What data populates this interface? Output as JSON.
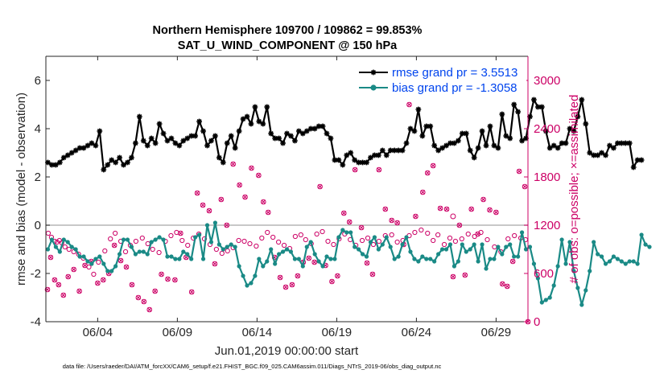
{
  "chart_data": {
    "type": "line",
    "title_line1": "Northern Hemisphere 109700 / 109862 = 99.853%",
    "title_line2": "SAT_U_WIND_COMPONENT @ 150 hPa",
    "xlabel": "Jun.01,2019 00:00:00 start",
    "ylabel_left": "rmse and bias (model - observation)",
    "ylabel_right": "# of obs: o=possible; ×=assimilated",
    "xlim": [
      0.75,
      31
    ],
    "ylim_left": [
      -4,
      7
    ],
    "ylim_right": [
      0,
      3300
    ],
    "x_ticks": [
      {
        "x": 4,
        "label": "06/04"
      },
      {
        "x": 9,
        "label": "06/09"
      },
      {
        "x": 14,
        "label": "06/14"
      },
      {
        "x": 19,
        "label": "06/19"
      },
      {
        "x": 24,
        "label": "06/24"
      },
      {
        "x": 29,
        "label": "06/29"
      }
    ],
    "y_ticks_left": [
      {
        "v": -4,
        "label": "-4"
      },
      {
        "v": -2,
        "label": "-2"
      },
      {
        "v": 0,
        "label": "0"
      },
      {
        "v": 2,
        "label": "2"
      },
      {
        "v": 4,
        "label": "4"
      },
      {
        "v": 6,
        "label": "6"
      }
    ],
    "y_ticks_right": [
      {
        "v": 0,
        "label": "0"
      },
      {
        "v": 600,
        "label": "600"
      },
      {
        "v": 1200,
        "label": "1200"
      },
      {
        "v": 1800,
        "label": "1800"
      },
      {
        "v": 2400,
        "label": "2400"
      },
      {
        "v": 3000,
        "label": "3000"
      }
    ],
    "series": [
      {
        "name": "rmse grand pr = 3.5513",
        "color": "#000000",
        "marker": "asterisk",
        "x_start": 0.875,
        "x_step": 0.25,
        "values": [
          2.6,
          2.5,
          2.5,
          2.6,
          2.8,
          2.9,
          3.0,
          3.1,
          3.2,
          3.2,
          3.3,
          3.4,
          3.3,
          3.9,
          2.3,
          2.5,
          2.7,
          2.6,
          2.8,
          2.5,
          2.6,
          2.8,
          3.4,
          4.5,
          3.5,
          3.3,
          3.6,
          3.4,
          4.2,
          3.8,
          3.5,
          3.6,
          3.4,
          3.3,
          3.5,
          3.6,
          3.7,
          3.7,
          4.3,
          3.9,
          3.3,
          3.5,
          3.7,
          2.8,
          2.6,
          3.4,
          3.7,
          3.2,
          3.9,
          4.4,
          4.5,
          4.2,
          4.9,
          4.3,
          4.2,
          4.9,
          3.8,
          3.6,
          3.6,
          3.4,
          3.8,
          3.7,
          3.5,
          3.9,
          3.8,
          3.9,
          4.0,
          4.0,
          4.1,
          4.1,
          3.8,
          3.6,
          2.7,
          2.7,
          2.5,
          2.9,
          3.0,
          2.7,
          2.6,
          2.6,
          2.6,
          2.8,
          2.9,
          2.9,
          3.1,
          2.9,
          3.1,
          3.1,
          3.1,
          3.1,
          3.4,
          4.0,
          3.9,
          4.8,
          3.7,
          4.1,
          4.1,
          3.3,
          3.1,
          3.2,
          3.3,
          3.4,
          3.4,
          3.5,
          3.8,
          3.8,
          3.1,
          2.8,
          3.2,
          3.9,
          3.3,
          4.1,
          3.3,
          3.2,
          4.6,
          3.7,
          3.6,
          5.0,
          4.7,
          3.5,
          3.6,
          4.5,
          5.2,
          4.9,
          4.9,
          3.9,
          3.2,
          3.3,
          3.2,
          3.4,
          3.4,
          4.0,
          3.9,
          4.5,
          5.2,
          4.2,
          3.0,
          2.9,
          2.9,
          3.0,
          2.9,
          3.3,
          3.2,
          3.4,
          3.4,
          3.4,
          3.4,
          2.4,
          2.7,
          2.7
        ]
      },
      {
        "name": "bias grand pr = -1.3058",
        "color": "#1a8a86",
        "marker": "dot",
        "x_start": 0.875,
        "x_step": 0.25,
        "values": [
          -1.0,
          -0.6,
          -0.9,
          -1.1,
          -0.6,
          -0.7,
          -0.9,
          -1.0,
          -1.3,
          -1.3,
          -1.5,
          -1.6,
          -1.4,
          -1.3,
          -1.6,
          -1.9,
          -1.9,
          -1.7,
          -1.2,
          -0.6,
          -0.6,
          -0.9,
          -1.2,
          -1.1,
          -1.1,
          -1.2,
          -0.7,
          -0.6,
          -0.5,
          -0.6,
          -1.3,
          -1.3,
          -1.4,
          -1.4,
          -1.1,
          -1.2,
          -1.4,
          -0.5,
          -0.4,
          -1.4,
          0.0,
          -0.7,
          0.1,
          -0.8,
          -1.0,
          -0.9,
          -0.8,
          -0.9,
          -1.7,
          -2.1,
          -2.5,
          -2.4,
          -2.1,
          -1.4,
          -1.7,
          -1.5,
          -1.0,
          -1.6,
          -1.2,
          -1.1,
          -1.0,
          -1.1,
          -1.4,
          -1.4,
          -1.7,
          -0.9,
          -0.7,
          -1.2,
          -1.5,
          -1.7,
          -1.3,
          -1.4,
          -1.4,
          -0.5,
          -0.2,
          -0.3,
          -0.3,
          -0.9,
          -1.0,
          -1.2,
          -1.3,
          -0.7,
          -0.5,
          -1.0,
          -0.8,
          -0.5,
          -0.9,
          -1.4,
          -1.3,
          -0.8,
          -0.5,
          -1.1,
          -1.4,
          -1.5,
          -1.3,
          -1.4,
          -1.4,
          -1.5,
          -1.2,
          -1.0,
          -1.0,
          -0.8,
          -1.7,
          -1.5,
          -0.8,
          -1.1,
          -1.0,
          -0.8,
          -1.5,
          -0.8,
          -1.8,
          -1.4,
          -1.4,
          -0.9,
          -1.2,
          -0.9,
          -0.8,
          -1.3,
          -1.3,
          -0.3,
          -1.0,
          -0.9,
          -1.6,
          -2.2,
          -3.2,
          -3.1,
          -3.0,
          -2.5,
          -1.7,
          -0.6,
          -1.6,
          -0.7,
          -1.9,
          -2.6,
          -3.3,
          -2.7,
          -1.9,
          -0.7,
          -1.2,
          -1.3,
          -1.6,
          -1.5,
          -1.3,
          -1.4,
          -1.5,
          -1.6,
          -1.5,
          -1.5,
          -1.6,
          -0.4,
          -0.8,
          -0.9
        ]
      }
    ],
    "obs_possible_points": [
      [
        0.9,
        1100
      ],
      [
        1.1,
        1050
      ],
      [
        1.3,
        1000
      ],
      [
        1.45,
        990
      ],
      [
        1.6,
        1010
      ],
      [
        1.75,
        980
      ],
      [
        1.95,
        930
      ],
      [
        2.2,
        900
      ],
      [
        2.5,
        870
      ],
      [
        2.8,
        840
      ],
      [
        3.1,
        790
      ],
      [
        3.45,
        680
      ],
      [
        3.75,
        590
      ],
      [
        4.05,
        740
      ],
      [
        4.45,
        880
      ],
      [
        4.8,
        1030
      ],
      [
        5.1,
        1100
      ],
      [
        5.45,
        1000
      ],
      [
        5.75,
        870
      ],
      [
        6.05,
        950
      ],
      [
        6.4,
        1000
      ],
      [
        6.8,
        1040
      ],
      [
        7.15,
        970
      ],
      [
        7.45,
        900
      ],
      [
        7.85,
        860
      ],
      [
        8.25,
        1000
      ],
      [
        8.6,
        1070
      ],
      [
        8.95,
        1110
      ],
      [
        9.3,
        1010
      ],
      [
        9.65,
        950
      ],
      [
        10.0,
        1040
      ],
      [
        10.35,
        1090
      ],
      [
        10.7,
        1030
      ],
      [
        11.05,
        960
      ],
      [
        11.45,
        900
      ],
      [
        11.8,
        850
      ],
      [
        12.15,
        880
      ],
      [
        12.5,
        920
      ],
      [
        12.85,
        1010
      ],
      [
        13.2,
        1000
      ],
      [
        13.55,
        970
      ],
      [
        13.95,
        940
      ],
      [
        14.3,
        1040
      ],
      [
        14.65,
        1110
      ],
      [
        15.0,
        1050
      ],
      [
        15.35,
        990
      ],
      [
        15.7,
        950
      ],
      [
        16.05,
        910
      ],
      [
        16.4,
        1060
      ],
      [
        16.75,
        1080
      ],
      [
        17.05,
        1020
      ],
      [
        17.4,
        970
      ],
      [
        17.75,
        1090
      ],
      [
        18.1,
        1120
      ],
      [
        18.45,
        1000
      ],
      [
        18.8,
        960
      ],
      [
        19.15,
        1030
      ],
      [
        19.5,
        1090
      ],
      [
        19.85,
        1020
      ],
      [
        20.2,
        950
      ],
      [
        20.6,
        1010
      ],
      [
        20.95,
        1040
      ],
      [
        21.3,
        960
      ],
      [
        21.65,
        1000
      ],
      [
        22.05,
        1070
      ],
      [
        22.45,
        1080
      ],
      [
        22.8,
        990
      ],
      [
        23.15,
        1010
      ],
      [
        23.55,
        1070
      ],
      [
        23.9,
        1110
      ],
      [
        24.3,
        1140
      ],
      [
        24.7,
        1100
      ],
      [
        25.05,
        1010
      ],
      [
        25.35,
        1080
      ],
      [
        25.75,
        960
      ],
      [
        26.1,
        1040
      ],
      [
        26.45,
        1000
      ],
      [
        26.85,
        1030
      ],
      [
        27.25,
        1090
      ],
      [
        27.65,
        1060
      ],
      [
        28.05,
        1110
      ],
      [
        28.45,
        1020
      ],
      [
        28.9,
        930
      ],
      [
        29.3,
        870
      ],
      [
        29.75,
        1030
      ],
      [
        30.15,
        1070
      ],
      [
        30.55,
        1040
      ],
      [
        30.85,
        1020
      ]
    ],
    "obs_assimilated_points": [
      [
        0.85,
        400
      ],
      [
        1.05,
        800
      ],
      [
        1.3,
        520
      ],
      [
        1.55,
        460
      ],
      [
        1.85,
        330
      ],
      [
        2.15,
        560
      ],
      [
        2.5,
        650
      ],
      [
        2.85,
        380
      ],
      [
        3.2,
        700
      ],
      [
        3.6,
        750
      ],
      [
        4.0,
        480
      ],
      [
        4.35,
        520
      ],
      [
        4.7,
        600
      ],
      [
        5.05,
        950
      ],
      [
        5.45,
        760
      ],
      [
        5.8,
        680
      ],
      [
        6.15,
        460
      ],
      [
        6.55,
        300
      ],
      [
        6.9,
        250
      ],
      [
        7.25,
        150
      ],
      [
        7.6,
        380
      ],
      [
        8.0,
        590
      ],
      [
        8.4,
        530
      ],
      [
        8.85,
        520
      ],
      [
        9.2,
        1100
      ],
      [
        9.55,
        800
      ],
      [
        9.9,
        370
      ],
      [
        10.25,
        1600
      ],
      [
        10.6,
        1450
      ],
      [
        11.0,
        1380
      ],
      [
        11.35,
        720
      ],
      [
        11.75,
        1520
      ],
      [
        12.1,
        1200
      ],
      [
        12.5,
        1960
      ],
      [
        12.9,
        1700
      ],
      [
        13.25,
        1550
      ],
      [
        13.65,
        1910
      ],
      [
        14.1,
        1820
      ],
      [
        14.4,
        1490
      ],
      [
        14.7,
        1360
      ],
      [
        15.1,
        800
      ],
      [
        15.45,
        550
      ],
      [
        15.8,
        430
      ],
      [
        16.2,
        460
      ],
      [
        16.55,
        570
      ],
      [
        16.9,
        740
      ],
      [
        17.25,
        790
      ],
      [
        17.6,
        740
      ],
      [
        17.95,
        1680
      ],
      [
        18.3,
        700
      ],
      [
        18.7,
        500
      ],
      [
        19.05,
        570
      ],
      [
        19.45,
        1350
      ],
      [
        19.8,
        1240
      ],
      [
        20.15,
        1890
      ],
      [
        20.55,
        1170
      ],
      [
        20.9,
        730
      ],
      [
        21.25,
        590
      ],
      [
        21.65,
        1890
      ],
      [
        22.05,
        1400
      ],
      [
        22.45,
        1260
      ],
      [
        22.8,
        1230
      ],
      [
        23.2,
        960
      ],
      [
        23.55,
        2700
      ],
      [
        23.95,
        1310
      ],
      [
        24.4,
        1610
      ],
      [
        24.7,
        1850
      ],
      [
        25.05,
        1940
      ],
      [
        25.5,
        1410
      ],
      [
        25.9,
        1400
      ],
      [
        26.3,
        560
      ],
      [
        26.7,
        1200
      ],
      [
        27.05,
        580
      ],
      [
        27.45,
        1400
      ],
      [
        27.85,
        1090
      ],
      [
        28.2,
        1520
      ],
      [
        28.6,
        1390
      ],
      [
        29.0,
        1360
      ],
      [
        29.4,
        470
      ],
      [
        29.7,
        440
      ],
      [
        30.05,
        750
      ],
      [
        30.45,
        1870
      ],
      [
        30.8,
        1680
      ],
      [
        31.0,
        0
      ]
    ],
    "obs_outline_marker": [
      26.3,
      1310
    ],
    "footer": "data file: /Users/raeder/DAI/ATM_forcXX/CAM6_setup/f.e21.FHIST_BGC.f09_025.CAM6assim.011/Diags_NTrS_2019-06/obs_diag_output.nc"
  }
}
